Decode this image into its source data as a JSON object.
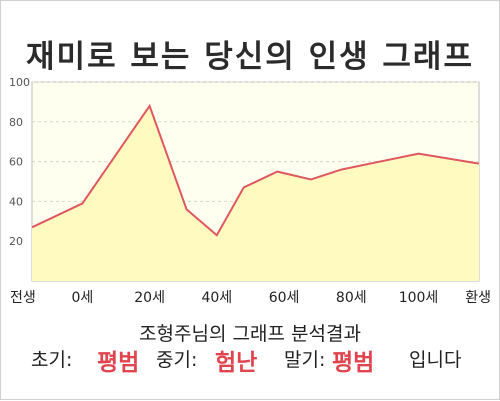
{
  "title": "재미로 보는 당신의 인생 그래프",
  "summary": "조형주님의 그래프 분석결과",
  "result": {
    "early_label": "초기:",
    "early_value": "평범",
    "middle_label": "중기:",
    "middle_value": "험난",
    "late_label": "말기:",
    "late_value": "평범",
    "suffix": "입니다"
  },
  "colors": {
    "line": "#e0585f",
    "fill": "#fffbc0",
    "plot_bg": "#fffff0",
    "accent_text": "#e0454f"
  },
  "chart_data": {
    "type": "area",
    "title": "재미로 보는 당신의 인생 그래프",
    "xlabel": "",
    "ylabel": "",
    "x_ticks": [
      "전생",
      "0세",
      "20세",
      "40세",
      "60세",
      "80세",
      "100세",
      "환생"
    ],
    "y_ticks": [
      20,
      40,
      60,
      80,
      100
    ],
    "ylim": [
      0,
      100
    ],
    "grid": true,
    "series": [
      {
        "x": [
          -15,
          0,
          20,
          31,
          40,
          48,
          58,
          68,
          77,
          100,
          118
        ],
        "values": [
          27,
          39,
          88,
          36,
          23,
          47,
          55,
          51,
          56,
          64,
          59
        ]
      }
    ]
  }
}
